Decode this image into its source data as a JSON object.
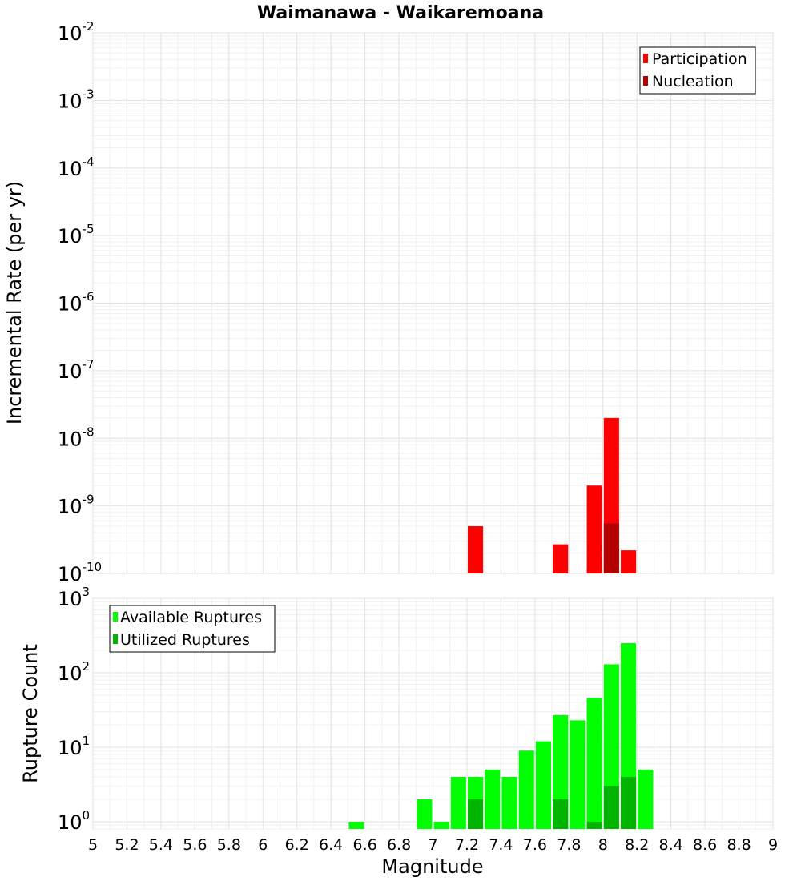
{
  "chart_data": [
    {
      "type": "bar",
      "title": "Waimanawa - Waikaremoana",
      "ylabel": "Incremental Rate (per yr)",
      "xlabel": "",
      "xlim": [
        5,
        9
      ],
      "ylim": [
        1e-10,
        0.01
      ],
      "yscale": "log",
      "grid": true,
      "legend_position": "top-right",
      "bin_width": 0.1,
      "y_ticks": [
        {
          "base": "10",
          "exp": "-2"
        },
        {
          "base": "10",
          "exp": "-3"
        },
        {
          "base": "10",
          "exp": "-4"
        },
        {
          "base": "10",
          "exp": "-5"
        },
        {
          "base": "10",
          "exp": "-6"
        },
        {
          "base": "10",
          "exp": "-7"
        },
        {
          "base": "10",
          "exp": "-8"
        },
        {
          "base": "10",
          "exp": "-9"
        },
        {
          "base": "10",
          "exp": "-10"
        }
      ],
      "series": [
        {
          "name": "Participation",
          "color": "#ff0000",
          "x": [
            7.25,
            7.75,
            7.95,
            8.05,
            8.15
          ],
          "values": [
            5e-10,
            2.7e-10,
            2e-09,
            2e-08,
            2.2e-10
          ]
        },
        {
          "name": "Nucleation",
          "color": "#b40000",
          "x": [
            8.05
          ],
          "values": [
            5.5e-10
          ]
        }
      ]
    },
    {
      "type": "bar",
      "title": "",
      "ylabel": "Rupture Count",
      "xlabel": "Magnitude",
      "xlim": [
        5,
        9
      ],
      "ylim": [
        0.8,
        1000
      ],
      "yscale": "log",
      "grid": true,
      "legend_position": "top-left",
      "bin_width": 0.1,
      "x_ticks": [
        "5",
        "5.2",
        "5.4",
        "5.6",
        "5.8",
        "6",
        "6.2",
        "6.4",
        "6.6",
        "6.8",
        "7",
        "7.2",
        "7.4",
        "7.6",
        "7.8",
        "8",
        "8.2",
        "8.4",
        "8.6",
        "8.8",
        "9"
      ],
      "y_ticks": [
        {
          "base": "10",
          "exp": "3"
        },
        {
          "base": "10",
          "exp": "2"
        },
        {
          "base": "10",
          "exp": "1"
        },
        {
          "base": "10",
          "exp": "0"
        }
      ],
      "series": [
        {
          "name": "Available Ruptures",
          "color": "#00ff00",
          "x": [
            6.55,
            6.95,
            7.05,
            7.15,
            7.25,
            7.35,
            7.45,
            7.55,
            7.65,
            7.75,
            7.85,
            7.95,
            8.05,
            8.15,
            8.25
          ],
          "values": [
            1,
            2,
            1,
            4,
            4,
            5,
            4,
            9,
            12,
            27,
            23,
            46,
            130,
            250,
            5
          ]
        },
        {
          "name": "Utilized Ruptures",
          "color": "#00b400",
          "x": [
            7.25,
            7.75,
            7.95,
            8.05,
            8.15
          ],
          "values": [
            2,
            2,
            1,
            3,
            4
          ]
        }
      ]
    }
  ]
}
